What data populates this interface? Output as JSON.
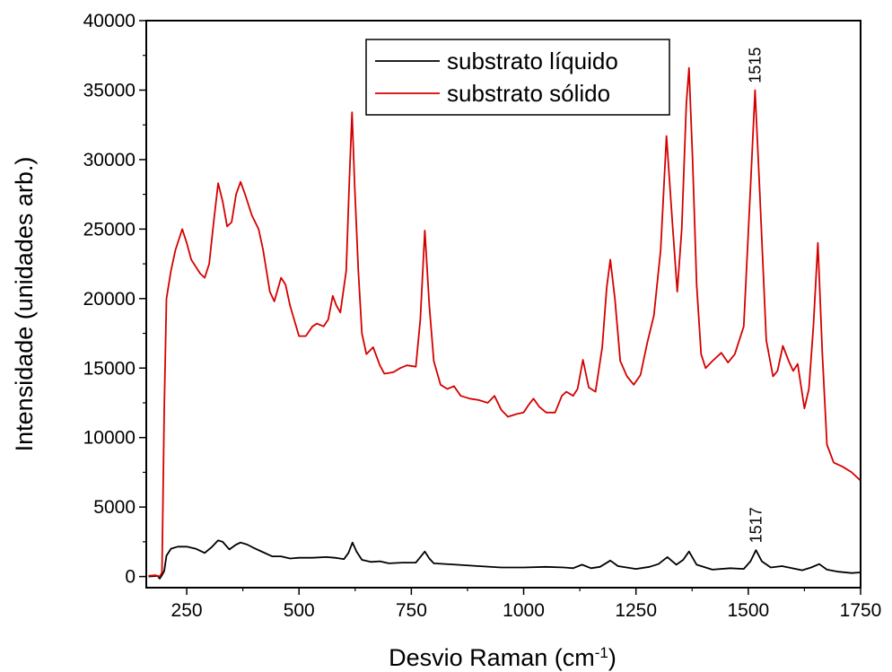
{
  "chart_data": {
    "type": "line",
    "xlabel": "Desvio Raman (cm",
    "xlabel_sup": "-1",
    "xlabel_suffix": ")",
    "ylabel": "Intensidade (unidades arb.)",
    "xlim": [
      160,
      1750
    ],
    "ylim": [
      -800,
      40000
    ],
    "xticks": [
      250,
      500,
      750,
      1000,
      1250,
      1500,
      1750
    ],
    "yticks": [
      0,
      5000,
      10000,
      15000,
      20000,
      25000,
      30000,
      35000,
      40000
    ],
    "legend_position": "top-center",
    "series": [
      {
        "name": "substrato líquido",
        "color": "#000000",
        "points": [
          [
            165,
            0
          ],
          [
            185,
            50
          ],
          [
            190,
            -150
          ],
          [
            195,
            100
          ],
          [
            200,
            400
          ],
          [
            205,
            1500
          ],
          [
            215,
            2000
          ],
          [
            230,
            2150
          ],
          [
            250,
            2150
          ],
          [
            270,
            2000
          ],
          [
            290,
            1700
          ],
          [
            305,
            2100
          ],
          [
            320,
            2600
          ],
          [
            330,
            2500
          ],
          [
            345,
            1950
          ],
          [
            360,
            2300
          ],
          [
            370,
            2450
          ],
          [
            385,
            2300
          ],
          [
            400,
            2050
          ],
          [
            420,
            1750
          ],
          [
            440,
            1450
          ],
          [
            460,
            1450
          ],
          [
            480,
            1300
          ],
          [
            500,
            1350
          ],
          [
            530,
            1350
          ],
          [
            560,
            1400
          ],
          [
            580,
            1350
          ],
          [
            600,
            1250
          ],
          [
            610,
            1700
          ],
          [
            619,
            2450
          ],
          [
            628,
            1800
          ],
          [
            640,
            1200
          ],
          [
            660,
            1050
          ],
          [
            680,
            1100
          ],
          [
            700,
            950
          ],
          [
            730,
            1000
          ],
          [
            760,
            1000
          ],
          [
            770,
            1400
          ],
          [
            780,
            1800
          ],
          [
            790,
            1300
          ],
          [
            800,
            950
          ],
          [
            850,
            850
          ],
          [
            900,
            750
          ],
          [
            950,
            650
          ],
          [
            1000,
            650
          ],
          [
            1050,
            700
          ],
          [
            1090,
            650
          ],
          [
            1110,
            600
          ],
          [
            1130,
            850
          ],
          [
            1150,
            600
          ],
          [
            1170,
            700
          ],
          [
            1193,
            1150
          ],
          [
            1210,
            750
          ],
          [
            1250,
            550
          ],
          [
            1280,
            700
          ],
          [
            1300,
            900
          ],
          [
            1320,
            1400
          ],
          [
            1340,
            850
          ],
          [
            1355,
            1200
          ],
          [
            1368,
            1800
          ],
          [
            1385,
            850
          ],
          [
            1420,
            500
          ],
          [
            1460,
            600
          ],
          [
            1490,
            550
          ],
          [
            1505,
            1100
          ],
          [
            1517,
            1900
          ],
          [
            1530,
            1100
          ],
          [
            1550,
            650
          ],
          [
            1575,
            750
          ],
          [
            1590,
            650
          ],
          [
            1620,
            450
          ],
          [
            1640,
            650
          ],
          [
            1658,
            900
          ],
          [
            1675,
            500
          ],
          [
            1700,
            350
          ],
          [
            1730,
            250
          ],
          [
            1750,
            300
          ]
        ]
      },
      {
        "name": "substrato sólido",
        "color": "#d40000",
        "points": [
          [
            165,
            50
          ],
          [
            180,
            100
          ],
          [
            190,
            0
          ],
          [
            195,
            300
          ],
          [
            200,
            12000
          ],
          [
            205,
            20000
          ],
          [
            215,
            22000
          ],
          [
            225,
            23500
          ],
          [
            240,
            25000
          ],
          [
            250,
            24000
          ],
          [
            260,
            22800
          ],
          [
            280,
            21800
          ],
          [
            290,
            21500
          ],
          [
            300,
            22500
          ],
          [
            310,
            25500
          ],
          [
            320,
            28300
          ],
          [
            330,
            27000
          ],
          [
            340,
            25200
          ],
          [
            350,
            25500
          ],
          [
            360,
            27500
          ],
          [
            370,
            28400
          ],
          [
            380,
            27500
          ],
          [
            395,
            26000
          ],
          [
            410,
            25000
          ],
          [
            420,
            23500
          ],
          [
            435,
            20500
          ],
          [
            445,
            19800
          ],
          [
            460,
            21500
          ],
          [
            470,
            21000
          ],
          [
            480,
            19500
          ],
          [
            500,
            17300
          ],
          [
            515,
            17300
          ],
          [
            530,
            18000
          ],
          [
            540,
            18200
          ],
          [
            555,
            18000
          ],
          [
            565,
            18500
          ],
          [
            575,
            20200
          ],
          [
            583,
            19500
          ],
          [
            592,
            19000
          ],
          [
            605,
            22000
          ],
          [
            612,
            28500
          ],
          [
            618,
            33400
          ],
          [
            624,
            28000
          ],
          [
            632,
            22000
          ],
          [
            640,
            17500
          ],
          [
            650,
            16000
          ],
          [
            665,
            16500
          ],
          [
            680,
            15200
          ],
          [
            690,
            14600
          ],
          [
            710,
            14700
          ],
          [
            725,
            15000
          ],
          [
            740,
            15200
          ],
          [
            760,
            15100
          ],
          [
            770,
            18500
          ],
          [
            780,
            24900
          ],
          [
            790,
            19500
          ],
          [
            800,
            15500
          ],
          [
            815,
            13800
          ],
          [
            830,
            13500
          ],
          [
            845,
            13700
          ],
          [
            860,
            13000
          ],
          [
            880,
            12800
          ],
          [
            900,
            12700
          ],
          [
            920,
            12500
          ],
          [
            935,
            13000
          ],
          [
            950,
            12000
          ],
          [
            965,
            11500
          ],
          [
            985,
            11700
          ],
          [
            1000,
            11800
          ],
          [
            1010,
            12300
          ],
          [
            1022,
            12800
          ],
          [
            1035,
            12200
          ],
          [
            1050,
            11800
          ],
          [
            1070,
            11800
          ],
          [
            1085,
            13000
          ],
          [
            1095,
            13300
          ],
          [
            1110,
            13000
          ],
          [
            1120,
            13500
          ],
          [
            1132,
            15600
          ],
          [
            1145,
            13600
          ],
          [
            1160,
            13300
          ],
          [
            1175,
            16500
          ],
          [
            1185,
            20800
          ],
          [
            1193,
            22800
          ],
          [
            1203,
            20000
          ],
          [
            1215,
            15500
          ],
          [
            1230,
            14400
          ],
          [
            1245,
            13800
          ],
          [
            1260,
            14500
          ],
          [
            1275,
            16800
          ],
          [
            1290,
            18800
          ],
          [
            1305,
            23500
          ],
          [
            1318,
            31700
          ],
          [
            1330,
            26000
          ],
          [
            1342,
            20500
          ],
          [
            1352,
            25000
          ],
          [
            1362,
            34000
          ],
          [
            1368,
            36600
          ],
          [
            1376,
            30000
          ],
          [
            1385,
            21000
          ],
          [
            1395,
            16000
          ],
          [
            1405,
            15000
          ],
          [
            1420,
            15500
          ],
          [
            1440,
            16100
          ],
          [
            1455,
            15400
          ],
          [
            1470,
            16000
          ],
          [
            1490,
            18000
          ],
          [
            1505,
            28000
          ],
          [
            1515,
            35000
          ],
          [
            1525,
            28000
          ],
          [
            1540,
            17000
          ],
          [
            1555,
            14400
          ],
          [
            1565,
            14800
          ],
          [
            1577,
            16600
          ],
          [
            1590,
            15500
          ],
          [
            1600,
            14800
          ],
          [
            1610,
            15300
          ],
          [
            1625,
            12100
          ],
          [
            1635,
            13500
          ],
          [
            1645,
            18000
          ],
          [
            1655,
            24000
          ],
          [
            1665,
            16000
          ],
          [
            1675,
            9500
          ],
          [
            1690,
            8200
          ],
          [
            1710,
            7900
          ],
          [
            1730,
            7500
          ],
          [
            1750,
            6900
          ]
        ]
      }
    ],
    "annotations": [
      {
        "text": "1515",
        "x": 1515,
        "y": 35500,
        "rotation": -90
      },
      {
        "text": "1517",
        "x": 1517,
        "y": 2400,
        "rotation": -90
      }
    ]
  }
}
